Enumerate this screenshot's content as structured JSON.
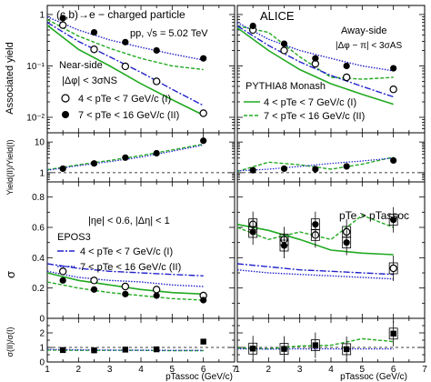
{
  "figure": {
    "header_left": "(c,b)→e − charged particle",
    "header_energy": "pp, √s = 5.02 TeV",
    "experiment": "ALICE",
    "near_side": [
      "Near-side",
      "|Δφ| < 3σNS"
    ],
    "away_side": [
      "Away-side",
      "|Δφ − π| < 3σAS"
    ],
    "generator_pythia": "PYTHIA8 Monash",
    "generator_epos": "EPOS3",
    "eta_cut": "|ηe| < 0.6, |Δη| < 1",
    "pt_condition": "pTe > pTassoc",
    "legend_I": "4 < pTe < 7 GeV/c (I)",
    "legend_II": "7 < pTe < 16 GeV/c (II)",
    "ylabel_yield": "Associated yield",
    "ylabel_ratio": "Yield(II)/Yield(I)",
    "ylabel_sigma": "σ",
    "ylabel_sigma_ratio": "σ(II)/σ(I)",
    "xlabel": "pTassoc (GeV/c)"
  },
  "colors": {
    "pythia": "#22aa22",
    "epos": "#2222cc",
    "data": "#000000"
  },
  "chart_data": [
    {
      "id": "near-yield",
      "type": "scatter",
      "ylog": true,
      "xlim": [
        1,
        7
      ],
      "ylim": [
        0.005,
        1.5
      ],
      "y_ticks": [
        "10⁻²",
        "10⁻¹",
        "1"
      ],
      "series": [
        {
          "name": "4 < pTe < 7 GeV/c (I)",
          "x": [
            1.5,
            2.5,
            3.5,
            4.5,
            6
          ],
          "y": [
            0.62,
            0.21,
            0.098,
            0.05,
            0.012
          ]
        },
        {
          "name": "7 < pTe < 16 GeV/c (II)",
          "x": [
            1.5,
            2.5,
            3.5,
            4.5,
            6
          ],
          "y": [
            0.85,
            0.45,
            0.29,
            0.2,
            0.14
          ]
        }
      ],
      "models": [
        {
          "model": "pythia-I",
          "x": [
            1,
            2,
            3,
            4,
            5,
            6
          ],
          "y": [
            0.62,
            0.21,
            0.1,
            0.045,
            0.022,
            0.011
          ]
        },
        {
          "model": "pythia-II",
          "x": [
            1,
            2,
            3,
            4,
            5,
            6
          ],
          "y": [
            0.8,
            0.38,
            0.22,
            0.14,
            0.1,
            0.085
          ]
        },
        {
          "model": "epos-I",
          "x": [
            1,
            2,
            3,
            4,
            5,
            6
          ],
          "y": [
            0.7,
            0.3,
            0.15,
            0.075,
            0.035,
            0.017
          ]
        },
        {
          "model": "epos-II",
          "x": [
            1,
            2,
            3,
            4,
            5,
            6
          ],
          "y": [
            0.9,
            0.5,
            0.32,
            0.23,
            0.17,
            0.13
          ]
        }
      ]
    },
    {
      "id": "away-yield",
      "type": "scatter",
      "ylog": true,
      "xlim": [
        1,
        7
      ],
      "ylim": [
        0.005,
        1.5
      ],
      "series": [
        {
          "name": "4 < pTe < 7 GeV/c (I)",
          "x": [
            1.5,
            2.5,
            3.5,
            4.5,
            6
          ],
          "y": [
            0.5,
            0.2,
            0.11,
            0.06,
            0.035
          ]
        },
        {
          "name": "7 < pTe < 16 GeV/c (II)",
          "x": [
            1.5,
            2.5,
            3.5,
            4.5,
            6
          ],
          "y": [
            0.6,
            0.27,
            0.14,
            0.1,
            0.09
          ]
        }
      ],
      "models": [
        {
          "model": "pythia-I",
          "x": [
            1,
            2,
            3,
            4,
            5,
            6
          ],
          "y": [
            0.55,
            0.2,
            0.085,
            0.045,
            0.028,
            0.018
          ]
        },
        {
          "model": "pythia-II",
          "x": [
            1,
            2,
            3,
            4,
            5,
            6
          ],
          "y": [
            0.6,
            0.45,
            0.15,
            0.06,
            0.055,
            0.06
          ]
        },
        {
          "model": "epos-I",
          "x": [
            1,
            2,
            3,
            4,
            5,
            6
          ],
          "y": [
            0.6,
            0.25,
            0.12,
            0.065,
            0.04,
            0.025
          ]
        },
        {
          "model": "epos-II",
          "x": [
            1,
            2,
            3,
            4,
            5,
            6
          ],
          "y": [
            0.7,
            0.33,
            0.2,
            0.14,
            0.1,
            0.08
          ]
        }
      ]
    },
    {
      "id": "near-yield-ratio",
      "type": "scatter",
      "ylog": true,
      "xlim": [
        1,
        7
      ],
      "ylim": [
        0.5,
        20
      ],
      "y_ticks": [
        "1",
        "10"
      ],
      "reference": 1,
      "series": [
        {
          "name": "Yield(II)/Yield(I)",
          "x": [
            1.5,
            2.5,
            3.5,
            4.5,
            6
          ],
          "y": [
            1.35,
            2.0,
            3.1,
            4.3,
            11
          ]
        }
      ],
      "models": [
        {
          "model": "pythia",
          "x": [
            1,
            2,
            3,
            4,
            5,
            6
          ],
          "y": [
            1.25,
            1.8,
            2.5,
            3.6,
            5.5,
            8.5
          ]
        },
        {
          "model": "epos",
          "x": [
            1,
            2,
            3,
            4,
            5,
            6
          ],
          "y": [
            1.2,
            1.7,
            2.3,
            3.2,
            5,
            8
          ]
        }
      ]
    },
    {
      "id": "away-yield-ratio",
      "type": "scatter",
      "ylog": true,
      "xlim": [
        1,
        7
      ],
      "ylim": [
        0.5,
        20
      ],
      "reference": 1,
      "series": [
        {
          "name": "Yield(II)/Yield(I)",
          "x": [
            1.5,
            2.5,
            3.5,
            4.5,
            6
          ],
          "y": [
            1.2,
            1.35,
            1.3,
            1.6,
            2.5
          ]
        }
      ],
      "models": [
        {
          "model": "pythia",
          "x": [
            1,
            2,
            3,
            4,
            5,
            6
          ],
          "y": [
            1.1,
            2.2,
            1.8,
            1.3,
            1.9,
            3.2
          ]
        },
        {
          "model": "epos",
          "x": [
            1,
            2,
            3,
            4,
            5,
            6
          ],
          "y": [
            1.15,
            1.3,
            1.6,
            2.0,
            2.4,
            3.0
          ]
        }
      ]
    },
    {
      "id": "near-sigma",
      "type": "scatter",
      "xlim": [
        1,
        7
      ],
      "ylim": [
        0,
        0.9
      ],
      "y_ticks": [
        "0",
        "0.2",
        "0.4",
        "0.6",
        "0.8"
      ],
      "series": [
        {
          "name": "4 < pTe < 7 GeV/c (I)",
          "x": [
            1.5,
            2.5,
            3.5,
            4.5,
            6
          ],
          "y": [
            0.31,
            0.25,
            0.21,
            0.19,
            0.15
          ]
        },
        {
          "name": "7 < pTe < 16 GeV/c (II)",
          "x": [
            1.5,
            2.5,
            3.5,
            4.5,
            6
          ],
          "y": [
            0.25,
            0.19,
            0.16,
            0.15,
            0.12
          ]
        }
      ],
      "models": [
        {
          "model": "pythia-I",
          "x": [
            1,
            2,
            3,
            4,
            5,
            6
          ],
          "y": [
            0.3,
            0.25,
            0.22,
            0.19,
            0.17,
            0.16
          ]
        },
        {
          "model": "pythia-II",
          "x": [
            1,
            2,
            3,
            4,
            5,
            6
          ],
          "y": [
            0.24,
            0.2,
            0.17,
            0.15,
            0.13,
            0.12
          ]
        },
        {
          "model": "epos-I",
          "x": [
            1,
            2,
            3,
            4,
            5,
            6
          ],
          "y": [
            0.36,
            0.33,
            0.31,
            0.3,
            0.29,
            0.28
          ]
        },
        {
          "model": "epos-II",
          "x": [
            1,
            2,
            3,
            4,
            5,
            6
          ],
          "y": [
            0.31,
            0.27,
            0.25,
            0.24,
            0.22,
            0.21
          ]
        }
      ]
    },
    {
      "id": "away-sigma",
      "type": "scatter",
      "xlim": [
        1,
        7
      ],
      "ylim": [
        0,
        0.9
      ],
      "series": [
        {
          "name": "4 < pTe < 7 GeV/c (I)",
          "x": [
            1.5,
            2.5,
            3.5,
            4.5,
            6
          ],
          "y": [
            0.62,
            0.52,
            0.55,
            0.57,
            0.33
          ]
        },
        {
          "name": "7 < pTe < 16 GeV/c (II)",
          "x": [
            1.5,
            2.5,
            3.5,
            4.5,
            6
          ],
          "y": [
            0.57,
            0.48,
            0.62,
            0.5,
            0.65
          ]
        }
      ],
      "models": [
        {
          "model": "pythia-I",
          "x": [
            1,
            2,
            3,
            4,
            5,
            6
          ],
          "y": [
            0.62,
            0.58,
            0.52,
            0.45,
            0.43,
            0.42
          ]
        },
        {
          "model": "pythia-II",
          "x": [
            1,
            2,
            3,
            4,
            5,
            6
          ],
          "y": [
            0.6,
            0.52,
            0.57,
            0.52,
            0.68,
            0.6
          ]
        },
        {
          "model": "epos-I",
          "x": [
            1,
            2,
            3,
            4,
            5,
            6
          ],
          "y": [
            0.36,
            0.34,
            0.32,
            0.31,
            0.3,
            0.29
          ]
        },
        {
          "model": "epos-II",
          "x": [
            1,
            2,
            3,
            4,
            5,
            6
          ],
          "y": [
            0.32,
            0.3,
            0.29,
            0.28,
            0.27,
            0.26
          ]
        }
      ]
    },
    {
      "id": "near-sigma-ratio",
      "type": "scatter",
      "xlim": [
        1,
        7
      ],
      "ylim": [
        0,
        3
      ],
      "y_ticks": [
        "0",
        "1",
        "2"
      ],
      "reference": 1,
      "series": [
        {
          "name": "σ(II)/σ(I)",
          "x": [
            1.5,
            2.5,
            3.5,
            4.5,
            6
          ],
          "y": [
            0.82,
            0.8,
            0.85,
            0.87,
            1.4
          ]
        }
      ],
      "models": [
        {
          "model": "pythia",
          "x": [
            1,
            2,
            3,
            4,
            5,
            6
          ],
          "y": [
            0.82,
            0.8,
            0.8,
            0.8,
            0.78,
            0.78
          ]
        },
        {
          "model": "epos",
          "x": [
            1,
            2,
            3,
            4,
            5,
            6
          ],
          "y": [
            0.86,
            0.84,
            0.82,
            0.81,
            0.8,
            0.8
          ]
        }
      ]
    },
    {
      "id": "away-sigma-ratio",
      "type": "scatter",
      "xlim": [
        1,
        7
      ],
      "ylim": [
        0,
        3
      ],
      "reference": 1,
      "series": [
        {
          "name": "σ(II)/σ(I)",
          "x": [
            1.5,
            2.5,
            3.5,
            4.5,
            6
          ],
          "y": [
            0.92,
            0.9,
            1.15,
            0.88,
            1.95
          ]
        }
      ],
      "models": [
        {
          "model": "pythia",
          "x": [
            1,
            2,
            3,
            4,
            5,
            6
          ],
          "y": [
            0.95,
            0.9,
            1.1,
            1.15,
            1.6,
            1.4
          ]
        },
        {
          "model": "epos",
          "x": [
            1,
            2,
            3,
            4,
            5,
            6
          ],
          "y": [
            0.9,
            0.88,
            0.9,
            0.9,
            0.9,
            0.9
          ]
        }
      ]
    }
  ]
}
